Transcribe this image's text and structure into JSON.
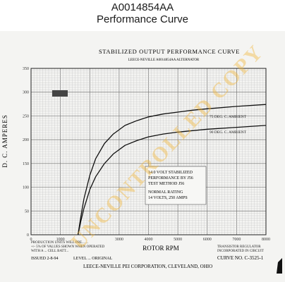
{
  "header": {
    "part_number": "A0014854AA",
    "sheet_title": "Performance Curve"
  },
  "chart_data": {
    "type": "line",
    "title": "STABILIZED OUTPUT PERFORMANCE CURVE",
    "subtitle": "LEECE-NEVILLE A0014854AA ALTERNATOR",
    "xlabel": "ROTOR RPM",
    "ylabel": "D. C. AMPERES",
    "xlim": [
      0,
      8000
    ],
    "ylim": [
      0,
      350
    ],
    "x_ticks": [
      {
        "value": 0,
        "label": "0"
      },
      {
        "value": 1000,
        "label": "1000"
      },
      {
        "value": 3000,
        "label": "3000"
      },
      {
        "value": 4000,
        "label": "4000"
      },
      {
        "value": 5000,
        "label": "5000"
      },
      {
        "value": 6000,
        "label": "6000"
      },
      {
        "value": 7000,
        "label": "7000"
      },
      {
        "value": 8000,
        "label": "8000"
      }
    ],
    "y_ticks": [
      0,
      50,
      100,
      150,
      200,
      250,
      300,
      350
    ],
    "grid": true,
    "series": [
      {
        "name": "75 DEG. C. AMBIENT",
        "x": [
          1600,
          1700,
          1800,
          2000,
          2200,
          2500,
          2800,
          3200,
          3600,
          4000,
          4500,
          5000,
          5500,
          6000,
          7000,
          8000
        ],
        "y": [
          0,
          40,
          75,
          125,
          160,
          192,
          212,
          230,
          240,
          248,
          254,
          258,
          262,
          265,
          270,
          274
        ]
      },
      {
        "name": "90 DEG. C. AMBIENT",
        "x": [
          1600,
          1700,
          1800,
          2000,
          2200,
          2500,
          2800,
          3200,
          3600,
          4000,
          4500,
          5000,
          5500,
          6000,
          7000,
          8000
        ],
        "y": [
          0,
          30,
          55,
          95,
          122,
          150,
          170,
          188,
          198,
          206,
          212,
          216,
          219,
          222,
          226,
          230
        ]
      }
    ],
    "annotations": [
      "14.0 VOLT STABILIZED",
      "PERFORMANCE BY J56",
      "TEST METHOD J56",
      "NORMAL RATING",
      "14 VOLTS, 250 AMPS"
    ],
    "footer": {
      "left_1": "PRODUCTION UNITS WILL PRE... ...",
      "left_2": "+/- 5% OF VALUES SHOWN WHEN OPERATED",
      "left_3": "WITH A ... CELL BATT...",
      "issued": "ISSUED 2-8-94",
      "original": "LEVEL ... ORIGINAL",
      "right_1": "TRANSISTOR REGULATOR",
      "right_2": "INCORPORATED IN CIRCUIT",
      "curve_no": "CURVE NO. C-3525-1",
      "company": "LEECE-NEVILLE PEI CORPORATION, CLEVELAND, OHIO"
    },
    "watermark": "UNCONTROLLED COPY"
  }
}
